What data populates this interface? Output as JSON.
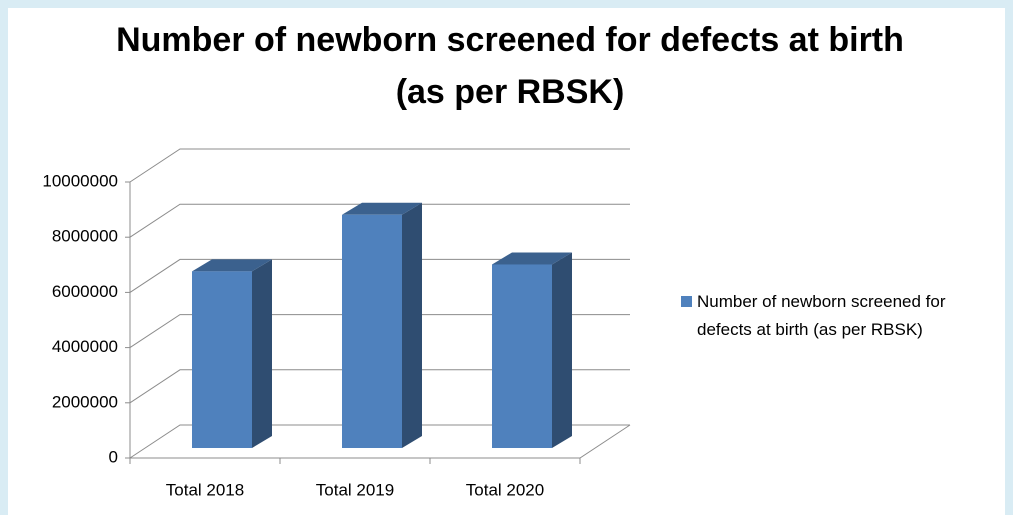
{
  "chart_data": {
    "type": "bar3d",
    "title": "Number of newborn screened for defects at birth (as per RBSK)",
    "categories": [
      "Total 2018",
      "Total 2019",
      "Total 2020"
    ],
    "series": [
      {
        "name": "Number of newborn screened for defects at birth (as per RBSK)",
        "color": "#4f81bd",
        "values": [
          6400000,
          8450000,
          6650000
        ]
      }
    ],
    "ylim": [
      0,
      10000000
    ],
    "yticks": [
      0,
      2000000,
      4000000,
      6000000,
      8000000,
      10000000
    ],
    "grid": true,
    "legend": "right"
  }
}
